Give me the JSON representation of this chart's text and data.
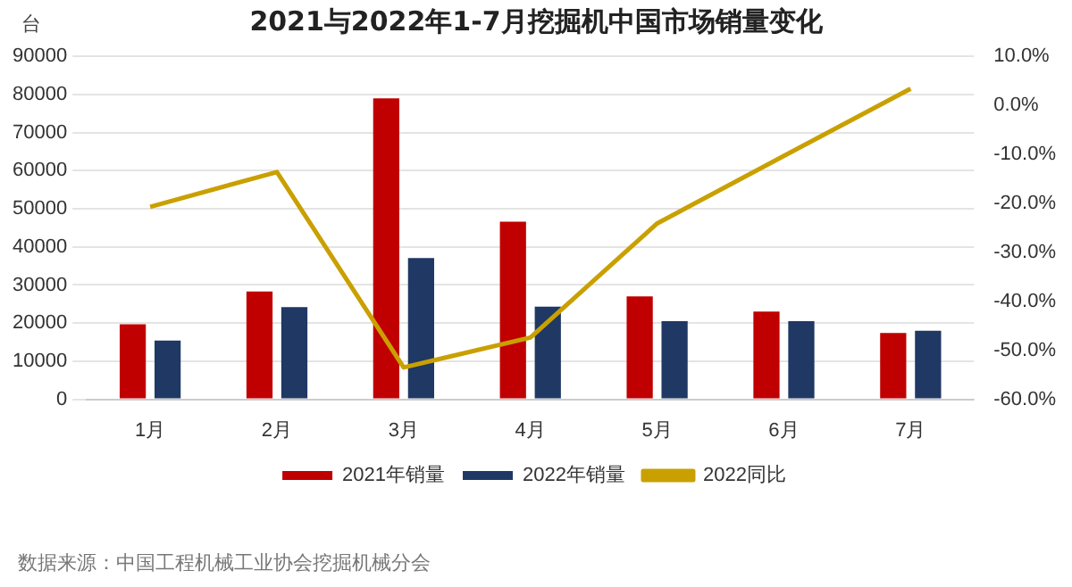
{
  "chart_data": {
    "type": "bar",
    "title": "2021与2022年1-7月挖掘机中国市场销量变化",
    "ylabel": "台",
    "categories": [
      "1月",
      "2月",
      "3月",
      "4月",
      "5月",
      "6月",
      "7月"
    ],
    "series": [
      {
        "name": "2021年销量",
        "color": "#c00000",
        "values": [
          19700,
          28300,
          79000,
          46600,
          27000,
          23000,
          17400
        ]
      },
      {
        "name": "2022年销量",
        "color": "#1f3864",
        "values": [
          15400,
          24200,
          37100,
          24300,
          20500,
          20500,
          18000
        ]
      },
      {
        "name": "2022同比",
        "type": "line",
        "axis": "y2",
        "color": "#c9a000",
        "values": [
          -20.7,
          -13.6,
          -53.5,
          -47.4,
          -24.1,
          -10.3,
          3.4
        ]
      }
    ],
    "ylim": [
      0,
      90000
    ],
    "yticks": [
      0,
      10000,
      20000,
      30000,
      40000,
      50000,
      60000,
      70000,
      80000,
      90000
    ],
    "y2lim": [
      -60,
      10
    ],
    "y2ticks": [
      {
        "value": -60,
        "label": "-60.0%"
      },
      {
        "value": -50,
        "label": "-50.0%"
      },
      {
        "value": -40,
        "label": "-40.0%"
      },
      {
        "value": -30,
        "label": "-30.0%"
      },
      {
        "value": -20,
        "label": "-20.0%"
      },
      {
        "value": -10,
        "label": "-10.0%"
      },
      {
        "value": 0,
        "label": "0.0%"
      },
      {
        "value": 10,
        "label": "10.0%"
      }
    ],
    "grid": "y",
    "legend": "bottom",
    "marker": "none",
    "annotations": [
      "数据来源：中国工程机械工业协会挖掘机械分会"
    ]
  }
}
